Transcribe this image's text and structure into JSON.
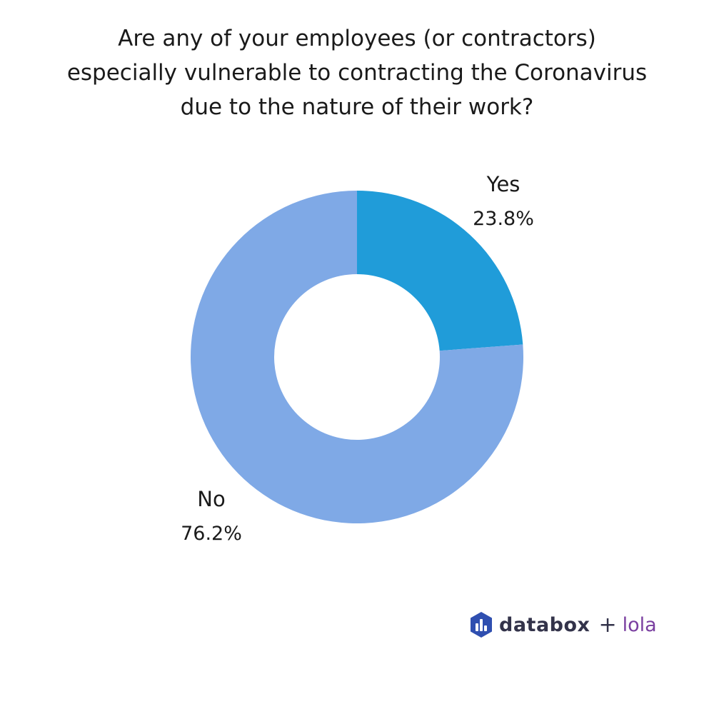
{
  "chart_data": {
    "type": "pie",
    "variant": "donut",
    "title_lines": [
      "Are any of your employees (or contractors)",
      "especially vulnerable to contracting the Coronavirus",
      "due to the nature of their work?"
    ],
    "slices": [
      {
        "label": "Yes",
        "value": 23.8,
        "value_label": "23.8%",
        "color": "#209cd9"
      },
      {
        "label": "No",
        "value": 76.2,
        "value_label": "76.2%",
        "color": "#7fa9e6"
      }
    ]
  },
  "branding": {
    "logo_icon": "databox-logo-icon",
    "databox": "databox",
    "plus": "+",
    "lola": "lola",
    "logo_color": "#2f4fb0"
  }
}
